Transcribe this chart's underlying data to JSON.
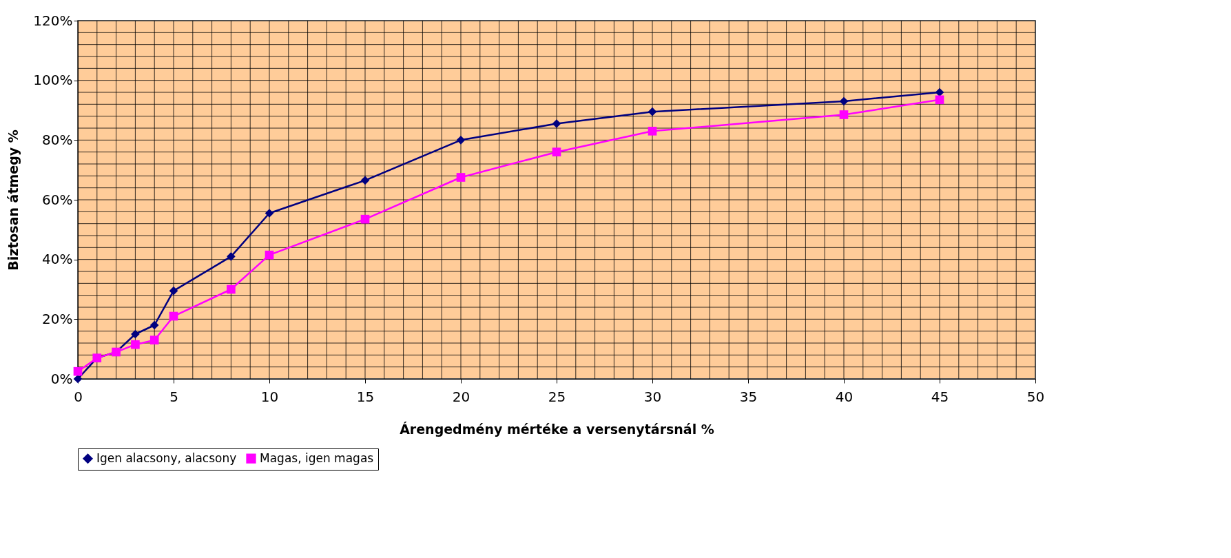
{
  "chart_data": {
    "type": "line",
    "xlabel": "Árengedmény mértéke a versenytársnál %",
    "ylabel": "Biztosan átmegy %",
    "x": [
      0,
      1,
      2,
      3,
      4,
      5,
      8,
      10,
      15,
      20,
      25,
      30,
      40,
      45
    ],
    "series": [
      {
        "name": "Igen alacsony, alacsony",
        "color": "#000080",
        "marker": "diamond",
        "values": [
          0,
          7,
          9,
          15,
          18,
          29.5,
          41,
          55.5,
          66.5,
          80,
          85.5,
          89.5,
          93,
          96
        ]
      },
      {
        "name": "Magas, igen magas",
        "color": "#ff00ff",
        "marker": "square",
        "values": [
          2.5,
          7,
          9,
          11.5,
          13,
          21,
          30,
          41.5,
          53.5,
          67.5,
          76,
          83,
          88.5,
          93.5
        ]
      }
    ],
    "xlim": [
      0,
      50
    ],
    "xticks": [
      0,
      {
        "value": 1,
        "label": null
      },
      {
        "value": 2,
        "label": null
      },
      {
        "value": 3,
        "label": null
      },
      {
        "value": 4,
        "label": null
      },
      5,
      {
        "value": 6,
        "label": null
      },
      {
        "value": 7,
        "label": null
      },
      {
        "value": 8,
        "label": null
      },
      {
        "value": 9,
        "label": null
      },
      10,
      {
        "value": 11,
        "label": null
      },
      {
        "value": 12,
        "label": null
      },
      {
        "value": 13,
        "label": null
      },
      {
        "value": 14,
        "label": null
      },
      15,
      {
        "value": 16,
        "label": null
      },
      {
        "value": 17,
        "label": null
      },
      {
        "value": 18,
        "label": null
      },
      {
        "value": 19,
        "label": null
      },
      20,
      {
        "value": 21,
        "label": null
      },
      {
        "value": 22,
        "label": null
      },
      {
        "value": 23,
        "label": null
      },
      {
        "value": 24,
        "label": null
      },
      25,
      {
        "value": 26,
        "label": null
      },
      {
        "value": 27,
        "label": null
      },
      {
        "value": 28,
        "label": null
      },
      {
        "value": 29,
        "label": null
      },
      30,
      {
        "value": 31,
        "label": null
      },
      {
        "value": 32,
        "label": null
      },
      {
        "value": 33,
        "label": null
      },
      {
        "value": 34,
        "label": null
      },
      35,
      {
        "value": 36,
        "label": null
      },
      {
        "value": 37,
        "label": null
      },
      {
        "value": 38,
        "label": null
      },
      {
        "value": 39,
        "label": null
      },
      40,
      {
        "value": 41,
        "label": null
      },
      {
        "value": 42,
        "label": null
      },
      {
        "value": 43,
        "label": null
      },
      {
        "value": 44,
        "label": null
      },
      45,
      {
        "value": 46,
        "label": null
      },
      {
        "value": 47,
        "label": null
      },
      {
        "value": 48,
        "label": null
      },
      {
        "value": 49,
        "label": null
      },
      50
    ],
    "ylim": [
      0,
      120
    ],
    "yticks": [
      {
        "value": 0,
        "label": "0%"
      },
      {
        "value": 4,
        "label": null
      },
      {
        "value": 8,
        "label": null
      },
      {
        "value": 12,
        "label": null
      },
      {
        "value": 16,
        "label": null
      },
      {
        "value": 20,
        "label": "20%"
      },
      {
        "value": 24,
        "label": null
      },
      {
        "value": 28,
        "label": null
      },
      {
        "value": 32,
        "label": null
      },
      {
        "value": 36,
        "label": null
      },
      {
        "value": 40,
        "label": "40%"
      },
      {
        "value": 44,
        "label": null
      },
      {
        "value": 48,
        "label": null
      },
      {
        "value": 52,
        "label": null
      },
      {
        "value": 56,
        "label": null
      },
      {
        "value": 60,
        "label": "60%"
      },
      {
        "value": 64,
        "label": null
      },
      {
        "value": 68,
        "label": null
      },
      {
        "value": 72,
        "label": null
      },
      {
        "value": 76,
        "label": null
      },
      {
        "value": 80,
        "label": "80%"
      },
      {
        "value": 84,
        "label": null
      },
      {
        "value": 88,
        "label": null
      },
      {
        "value": 92,
        "label": null
      },
      {
        "value": 96,
        "label": null
      },
      {
        "value": 100,
        "label": "100%"
      },
      {
        "value": 104,
        "label": null
      },
      {
        "value": 108,
        "label": null
      },
      {
        "value": 112,
        "label": null
      },
      {
        "value": 116,
        "label": null
      },
      {
        "value": 120,
        "label": "120%"
      }
    ],
    "grid": true,
    "legend": "bottom",
    "line_style": "solid"
  }
}
